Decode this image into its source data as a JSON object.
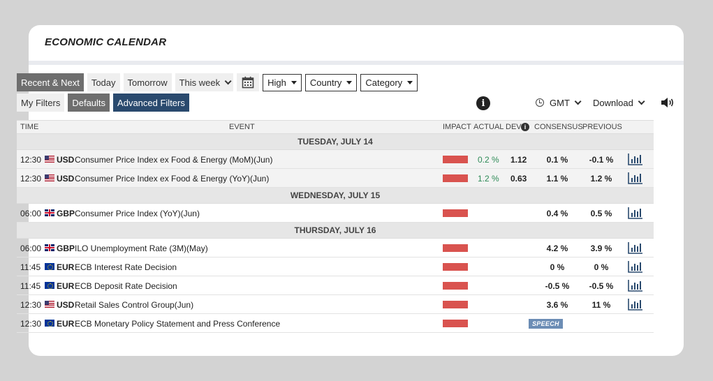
{
  "title": "ECONOMIC CALENDAR",
  "filters_row1": {
    "recent_next": "Recent & Next",
    "today": "Today",
    "tomorrow": "Tomorrow",
    "this_week": "This week",
    "impact": "High",
    "country": "Country",
    "category": "Category"
  },
  "filters_row2": {
    "my_filters": "My Filters",
    "defaults": "Defaults",
    "advanced": "Advanced Filters"
  },
  "tools": {
    "info": "i",
    "timezone": "GMT",
    "download": "Download"
  },
  "columns": {
    "time": "TIME",
    "event": "EVENT",
    "impact": "IMPACT",
    "actual": "ACTUAL",
    "dev": "DEV",
    "consensus": "CONSENSUS",
    "previous": "PREVIOUS"
  },
  "days": [
    {
      "label": "TUESDAY, JULY 14",
      "events": [
        {
          "time": "12:30",
          "flag": "us-flag",
          "currency": "USD",
          "name": "Consumer Price Index ex Food & Energy (MoM)(Jun)",
          "actual": "0.2 %",
          "dev": "1.12",
          "consensus": "0.1 %",
          "previous": "-0.1 %"
        },
        {
          "time": "12:30",
          "flag": "us-flag",
          "currency": "USD",
          "name": "Consumer Price Index ex Food & Energy (YoY)(Jun)",
          "actual": "1.2 %",
          "dev": "0.63",
          "consensus": "1.1 %",
          "previous": "1.2 %"
        }
      ]
    },
    {
      "label": "WEDNESDAY, JULY 15",
      "events": [
        {
          "time": "06:00",
          "flag": "gb-flag",
          "currency": "GBP",
          "name": "Consumer Price Index (YoY)(Jun)",
          "actual": "",
          "dev": "",
          "consensus": "0.4 %",
          "previous": "0.5 %"
        }
      ]
    },
    {
      "label": "THURSDAY, JULY 16",
      "events": [
        {
          "time": "06:00",
          "flag": "gb-flag",
          "currency": "GBP",
          "name": "ILO Unemployment Rate (3M)(May)",
          "actual": "",
          "dev": "",
          "consensus": "4.2 %",
          "previous": "3.9 %"
        },
        {
          "time": "11:45",
          "flag": "eu-flag",
          "currency": "EUR",
          "name": "ECB Interest Rate Decision",
          "actual": "",
          "dev": "",
          "consensus": "0 %",
          "previous": "0 %"
        },
        {
          "time": "11:45",
          "flag": "eu-flag",
          "currency": "EUR",
          "name": "ECB Deposit Rate Decision",
          "actual": "",
          "dev": "",
          "consensus": "-0.5 %",
          "previous": "-0.5 %"
        },
        {
          "time": "12:30",
          "flag": "us-flag",
          "currency": "USD",
          "name": "Retail Sales Control Group(Jun)",
          "actual": "",
          "dev": "",
          "consensus": "3.6 %",
          "previous": "11 %"
        },
        {
          "time": "12:30",
          "flag": "eu-flag",
          "currency": "EUR",
          "name": "ECB Monetary Policy Statement and Press Conference",
          "actual": "",
          "dev": "",
          "consensus": "",
          "previous": "",
          "badge": "SPEECH"
        }
      ]
    }
  ],
  "colors": {
    "impact_high": "#d9534f",
    "actual_positive": "#2e8b57",
    "accent_navy": "#2a4a6e",
    "speech_badge": "#6c8db5"
  }
}
